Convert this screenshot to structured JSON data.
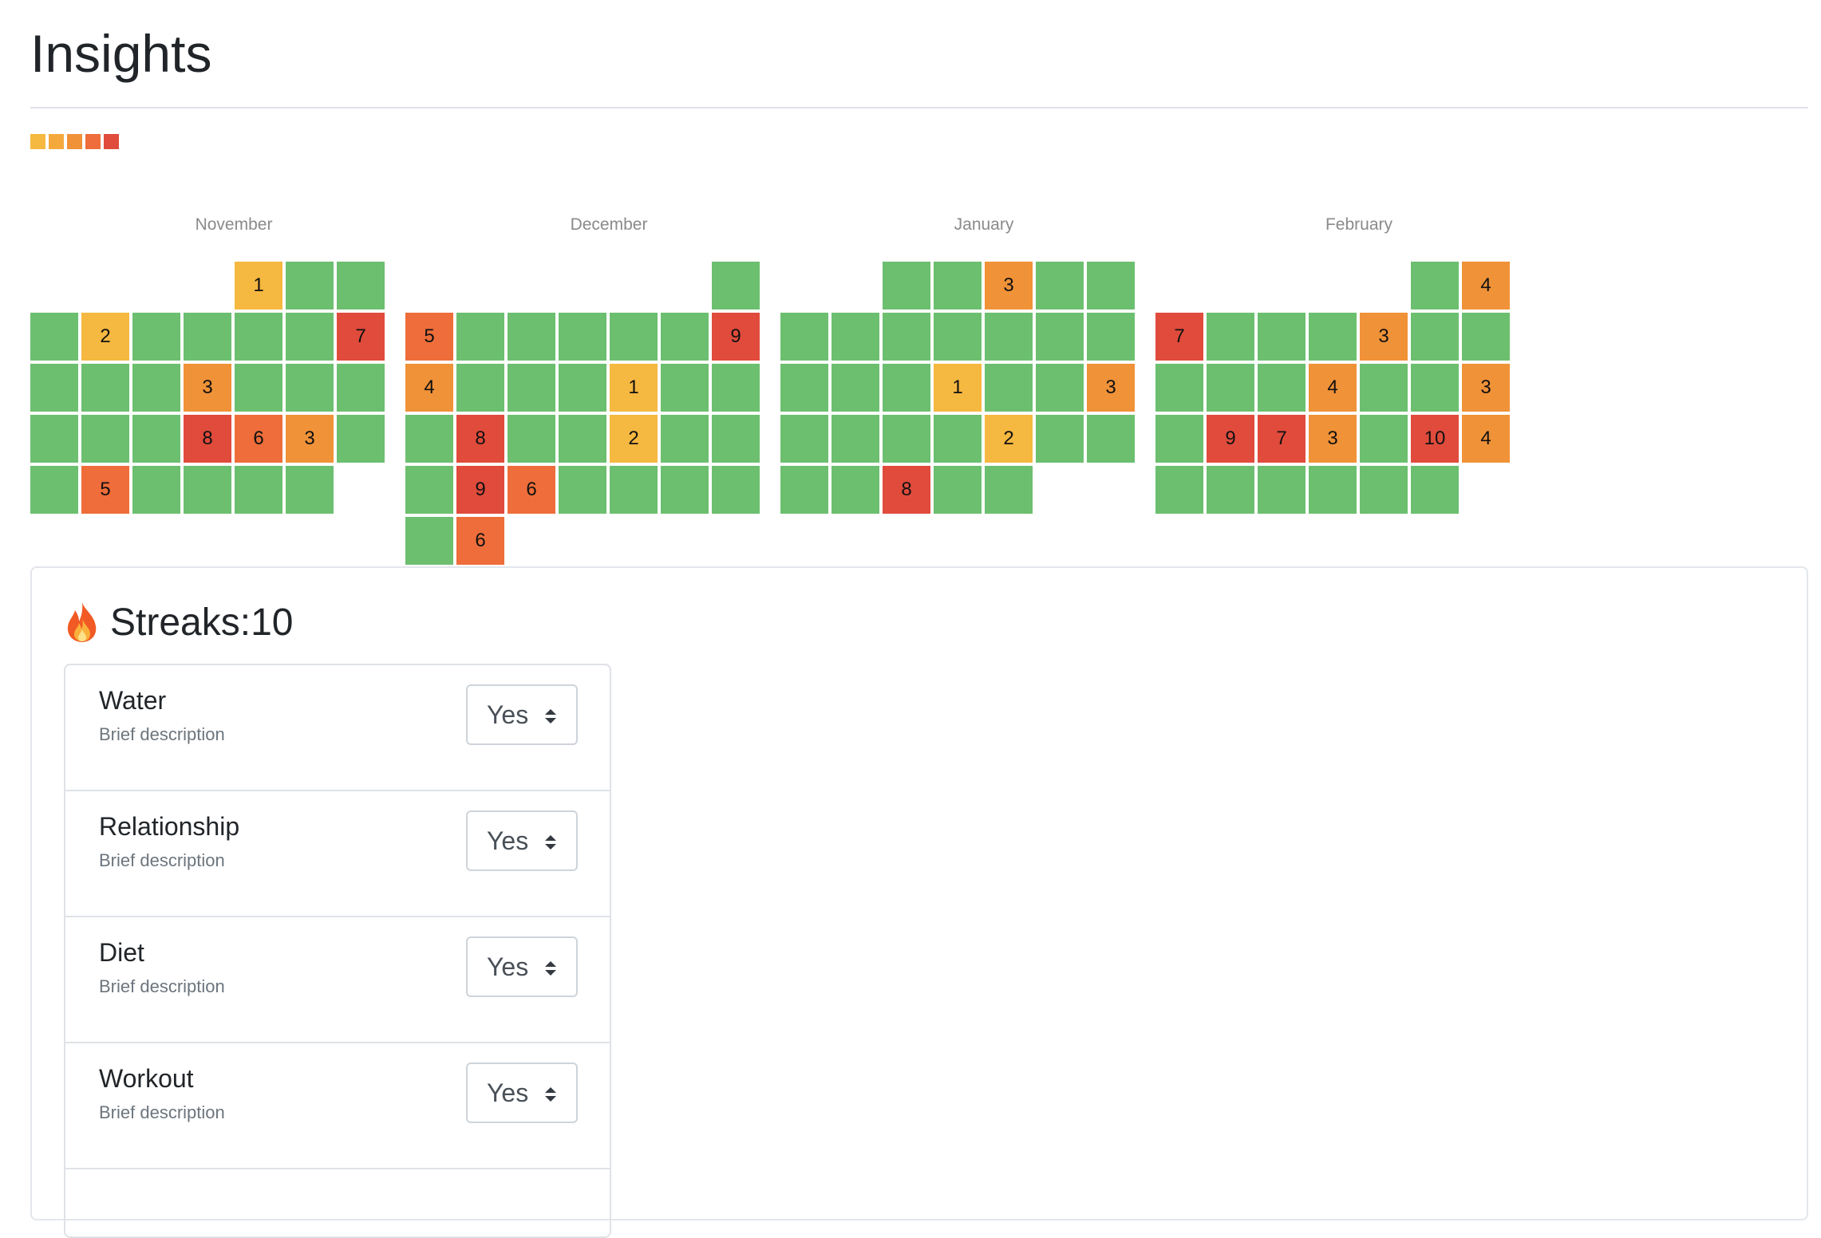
{
  "page": {
    "title": "Insights"
  },
  "legend": {
    "colors": [
      "#f5b840",
      "#f5a93d",
      "#f09238",
      "#ee6d3a",
      "#e04b3c"
    ]
  },
  "calendar": {
    "colors": {
      "green": "#6cbf6f",
      "yellow": "#f5b840",
      "orange": "#f09238",
      "redorange": "#ee6d3a",
      "red": "#e04b3c"
    },
    "months": [
      {
        "label": "November",
        "rows": [
          [
            null,
            null,
            null,
            null,
            {
              "c": "yellow",
              "n": "1"
            },
            {
              "c": "green"
            },
            {
              "c": "green"
            }
          ],
          [
            {
              "c": "green"
            },
            {
              "c": "yellow",
              "n": "2"
            },
            {
              "c": "green"
            },
            {
              "c": "green"
            },
            {
              "c": "green"
            },
            {
              "c": "green"
            },
            {
              "c": "red",
              "n": "7"
            }
          ],
          [
            {
              "c": "green"
            },
            {
              "c": "green"
            },
            {
              "c": "green"
            },
            {
              "c": "orange",
              "n": "3"
            },
            {
              "c": "green"
            },
            {
              "c": "green"
            },
            {
              "c": "green"
            }
          ],
          [
            {
              "c": "green"
            },
            {
              "c": "green"
            },
            {
              "c": "green"
            },
            {
              "c": "red",
              "n": "8"
            },
            {
              "c": "redorange",
              "n": "6"
            },
            {
              "c": "orange",
              "n": "3"
            },
            {
              "c": "green"
            }
          ],
          [
            {
              "c": "green"
            },
            {
              "c": "redorange",
              "n": "5"
            },
            {
              "c": "green"
            },
            {
              "c": "green"
            },
            {
              "c": "green"
            },
            {
              "c": "green"
            },
            null
          ]
        ]
      },
      {
        "label": "December",
        "rows": [
          [
            null,
            null,
            null,
            null,
            null,
            null,
            {
              "c": "green"
            }
          ],
          [
            {
              "c": "redorange",
              "n": "5"
            },
            {
              "c": "green"
            },
            {
              "c": "green"
            },
            {
              "c": "green"
            },
            {
              "c": "green"
            },
            {
              "c": "green"
            },
            {
              "c": "red",
              "n": "9"
            }
          ],
          [
            {
              "c": "orange",
              "n": "4"
            },
            {
              "c": "green"
            },
            {
              "c": "green"
            },
            {
              "c": "green"
            },
            {
              "c": "yellow",
              "n": "1"
            },
            {
              "c": "green"
            },
            {
              "c": "green"
            }
          ],
          [
            {
              "c": "green"
            },
            {
              "c": "red",
              "n": "8"
            },
            {
              "c": "green"
            },
            {
              "c": "green"
            },
            {
              "c": "yellow",
              "n": "2"
            },
            {
              "c": "green"
            },
            {
              "c": "green"
            }
          ],
          [
            {
              "c": "green"
            },
            {
              "c": "red",
              "n": "9"
            },
            {
              "c": "redorange",
              "n": "6"
            },
            {
              "c": "green"
            },
            {
              "c": "green"
            },
            {
              "c": "green"
            },
            {
              "c": "green"
            }
          ],
          [
            {
              "c": "green"
            },
            {
              "c": "redorange",
              "n": "6"
            },
            null,
            null,
            null,
            null,
            null
          ]
        ]
      },
      {
        "label": "January",
        "rows": [
          [
            null,
            null,
            {
              "c": "green"
            },
            {
              "c": "green"
            },
            {
              "c": "orange",
              "n": "3"
            },
            {
              "c": "green"
            },
            {
              "c": "green"
            }
          ],
          [
            {
              "c": "green"
            },
            {
              "c": "green"
            },
            {
              "c": "green"
            },
            {
              "c": "green"
            },
            {
              "c": "green"
            },
            {
              "c": "green"
            },
            {
              "c": "green"
            }
          ],
          [
            {
              "c": "green"
            },
            {
              "c": "green"
            },
            {
              "c": "green"
            },
            {
              "c": "yellow",
              "n": "1"
            },
            {
              "c": "green"
            },
            {
              "c": "green"
            },
            {
              "c": "orange",
              "n": "3"
            }
          ],
          [
            {
              "c": "green"
            },
            {
              "c": "green"
            },
            {
              "c": "green"
            },
            {
              "c": "green"
            },
            {
              "c": "yellow",
              "n": "2"
            },
            {
              "c": "green"
            },
            {
              "c": "green"
            }
          ],
          [
            {
              "c": "green"
            },
            {
              "c": "green"
            },
            {
              "c": "red",
              "n": "8"
            },
            {
              "c": "green"
            },
            {
              "c": "green"
            },
            null,
            null
          ]
        ]
      },
      {
        "label": "February",
        "rows": [
          [
            null,
            null,
            null,
            null,
            null,
            {
              "c": "green"
            },
            {
              "c": "orange",
              "n": "4"
            }
          ],
          [
            {
              "c": "red",
              "n": "7"
            },
            {
              "c": "green"
            },
            {
              "c": "green"
            },
            {
              "c": "green"
            },
            {
              "c": "orange",
              "n": "3"
            },
            {
              "c": "green"
            },
            {
              "c": "green"
            }
          ],
          [
            {
              "c": "green"
            },
            {
              "c": "green"
            },
            {
              "c": "green"
            },
            {
              "c": "orange",
              "n": "4"
            },
            {
              "c": "green"
            },
            {
              "c": "green"
            },
            {
              "c": "orange",
              "n": "3"
            }
          ],
          [
            {
              "c": "green"
            },
            {
              "c": "red",
              "n": "9"
            },
            {
              "c": "red",
              "n": "7"
            },
            {
              "c": "orange",
              "n": "3"
            },
            {
              "c": "green"
            },
            {
              "c": "red",
              "n": "10"
            },
            {
              "c": "orange",
              "n": "4"
            }
          ],
          [
            {
              "c": "green"
            },
            {
              "c": "green"
            },
            {
              "c": "green"
            },
            {
              "c": "green"
            },
            {
              "c": "green"
            },
            {
              "c": "green"
            },
            null
          ]
        ]
      }
    ]
  },
  "streaks": {
    "icon": "fire-icon",
    "label": "Streaks:10"
  },
  "habits": [
    {
      "title": "Water",
      "description": "Brief description",
      "value": "Yes"
    },
    {
      "title": "Relationship",
      "description": "Brief description",
      "value": "Yes"
    },
    {
      "title": "Diet",
      "description": "Brief description",
      "value": "Yes"
    },
    {
      "title": "Workout",
      "description": "Brief description",
      "value": "Yes"
    }
  ]
}
